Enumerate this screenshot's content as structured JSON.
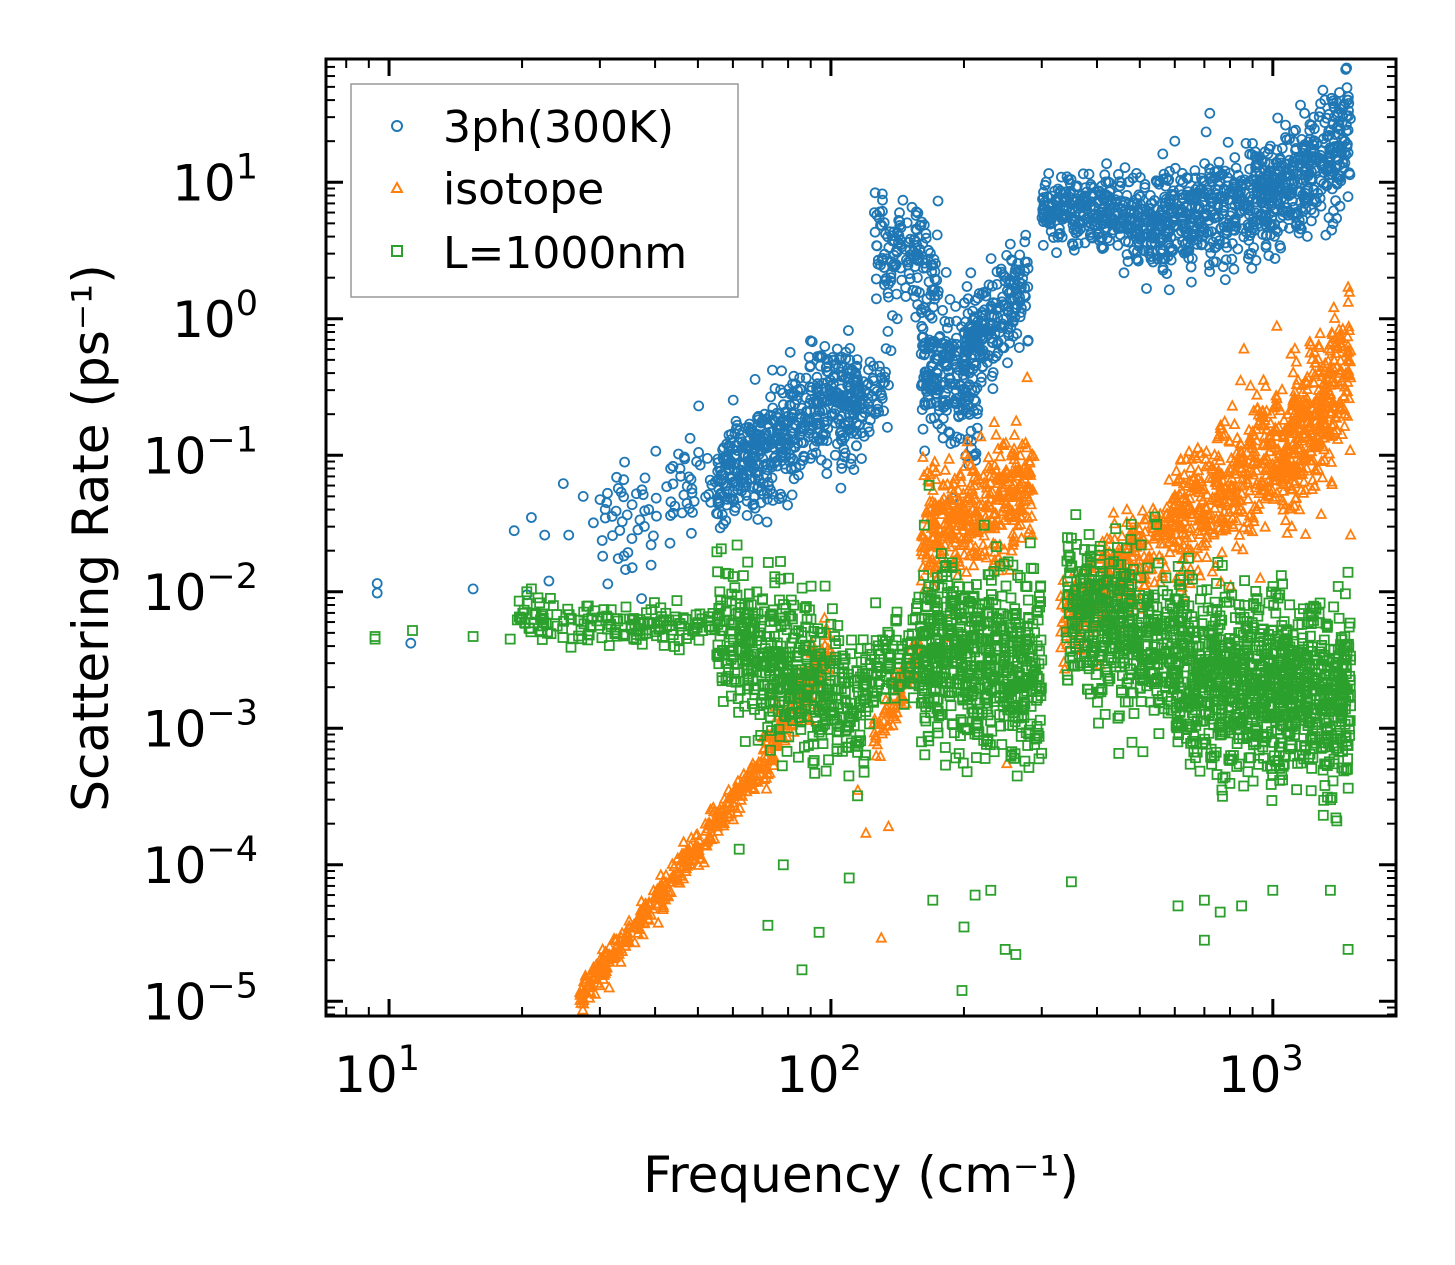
{
  "chart_data": {
    "type": "scatter",
    "title": "",
    "xlabel": "Frequency (cm⁻¹)",
    "ylabel": "Scattering Rate (ps⁻¹)",
    "xscale": "log",
    "yscale": "log",
    "xlim": [
      7.2,
      1900
    ],
    "ylim": [
      7.8e-06,
      80
    ],
    "x_ticks": [
      {
        "value": 10,
        "base": "10",
        "exp": "1"
      },
      {
        "value": 100,
        "base": "10",
        "exp": "2"
      },
      {
        "value": 1000,
        "base": "10",
        "exp": "3"
      }
    ],
    "y_ticks": [
      {
        "value": 1e-05,
        "base": "10",
        "exp": "−5"
      },
      {
        "value": 0.0001,
        "base": "10",
        "exp": "−4"
      },
      {
        "value": 0.001,
        "base": "10",
        "exp": "−3"
      },
      {
        "value": 0.01,
        "base": "10",
        "exp": "−2"
      },
      {
        "value": 0.1,
        "base": "10",
        "exp": "−1"
      },
      {
        "value": 1,
        "base": "10",
        "exp": "0"
      },
      {
        "value": 10,
        "base": "10",
        "exp": "1"
      }
    ],
    "legend_position": "top-left",
    "series": [
      {
        "name": "3ph(300K)",
        "marker": "circle",
        "color": "#1f77b4",
        "segments": [
          {
            "x0": 30,
            "x1": 60,
            "y0": 0.03,
            "y1": 0.09,
            "spread": 0.35,
            "n": 90
          },
          {
            "x0": 55,
            "x1": 115,
            "y0": 0.06,
            "y1": 0.35,
            "spread": 0.35,
            "n": 520
          },
          {
            "x0": 105,
            "x1": 135,
            "y0": 0.15,
            "y1": 0.4,
            "spread": 0.3,
            "n": 90
          },
          {
            "x0": 125,
            "x1": 175,
            "y0": 3.0,
            "y1": 2.5,
            "spread": 0.35,
            "n": 140
          },
          {
            "x0": 160,
            "x1": 215,
            "y0": 0.6,
            "y1": 0.25,
            "spread": 0.45,
            "n": 230
          },
          {
            "x0": 200,
            "x1": 280,
            "y0": 0.6,
            "y1": 1.8,
            "spread": 0.3,
            "n": 220
          },
          {
            "x0": 300,
            "x1": 460,
            "y0": 6.5,
            "y1": 6.0,
            "spread": 0.2,
            "n": 260
          },
          {
            "x0": 460,
            "x1": 700,
            "y0": 5.0,
            "y1": 6.0,
            "spread": 0.3,
            "n": 300
          },
          {
            "x0": 700,
            "x1": 1050,
            "y0": 6.0,
            "y1": 9.0,
            "spread": 0.32,
            "n": 320
          },
          {
            "x0": 1050,
            "x1": 1500,
            "y0": 8.0,
            "y1": 22.0,
            "spread": 0.35,
            "n": 280
          }
        ],
        "points": [
          [
            9.4,
            0.0115
          ],
          [
            9.4,
            0.0098
          ],
          [
            11.2,
            0.0042
          ],
          [
            15.5,
            0.0105
          ],
          [
            19.2,
            0.028
          ],
          [
            20.5,
            0.0095
          ],
          [
            21.0,
            0.035
          ],
          [
            22.5,
            0.026
          ],
          [
            23.0,
            0.012
          ],
          [
            24.8,
            0.062
          ],
          [
            25.5,
            0.026
          ],
          [
            27.5,
            0.05
          ],
          [
            29.0,
            0.032
          ],
          [
            33.0,
            0.0175
          ],
          [
            35.5,
            0.015
          ],
          [
            720,
            32
          ],
          [
            600,
            20
          ],
          [
            1180,
            32
          ],
          [
            1480,
            40
          ]
        ]
      },
      {
        "name": "isotope",
        "marker": "triangle",
        "color": "#ff7f0e",
        "segments": [
          {
            "x0": 27,
            "x1": 72,
            "y0": 1.1e-05,
            "y1": 0.0006,
            "spread": 0.1,
            "n": 380
          },
          {
            "x0": 70,
            "x1": 100,
            "y0": 0.0006,
            "y1": 0.004,
            "spread": 0.2,
            "n": 160
          },
          {
            "x0": 125,
            "x1": 160,
            "y0": 0.0008,
            "y1": 0.004,
            "spread": 0.15,
            "n": 80
          },
          {
            "x0": 160,
            "x1": 290,
            "y0": 0.025,
            "y1": 0.06,
            "spread": 0.35,
            "n": 420
          },
          {
            "x0": 330,
            "x1": 600,
            "y0": 0.006,
            "y1": 0.03,
            "spread": 0.3,
            "n": 300
          },
          {
            "x0": 600,
            "x1": 1050,
            "y0": 0.03,
            "y1": 0.12,
            "spread": 0.4,
            "n": 420
          },
          {
            "x0": 1050,
            "x1": 1500,
            "y0": 0.08,
            "y1": 0.5,
            "spread": 0.45,
            "n": 380
          }
        ],
        "points": [
          [
            27.5,
            1.05e-05
          ],
          [
            30.0,
            1.3e-05
          ],
          [
            31.5,
            1.25e-05
          ],
          [
            130,
            2.9e-05
          ],
          [
            120,
            0.00017
          ],
          [
            115,
            0.00035
          ],
          [
            135,
            0.00019
          ],
          [
            250,
            0.00055
          ],
          [
            278,
            0.37
          ],
          [
            1310,
            0.17
          ],
          [
            1480,
            1.7
          ],
          [
            1500,
            0.026
          ],
          [
            1100,
            0.55
          ],
          [
            860,
            0.6
          ]
        ]
      },
      {
        "name": "L=1000nm",
        "marker": "square",
        "color": "#2ca02c",
        "segments": [
          {
            "x0": 19,
            "x1": 55,
            "y0": 0.006,
            "y1": 0.0055,
            "spread": 0.12,
            "n": 160
          },
          {
            "x0": 55,
            "x1": 120,
            "y0": 0.005,
            "y1": 0.0015,
            "spread": 0.45,
            "n": 520
          },
          {
            "x0": 120,
            "x1": 160,
            "y0": 0.0025,
            "y1": 0.0035,
            "spread": 0.3,
            "n": 100
          },
          {
            "x0": 160,
            "x1": 300,
            "y0": 0.004,
            "y1": 0.0025,
            "spread": 0.55,
            "n": 620
          },
          {
            "x0": 340,
            "x1": 600,
            "y0": 0.008,
            "y1": 0.003,
            "spread": 0.5,
            "n": 460
          },
          {
            "x0": 600,
            "x1": 1050,
            "y0": 0.003,
            "y1": 0.0018,
            "spread": 0.55,
            "n": 620
          },
          {
            "x0": 1050,
            "x1": 1500,
            "y0": 0.002,
            "y1": 0.0015,
            "spread": 0.55,
            "n": 420
          }
        ],
        "points": [
          [
            9.3,
            0.0047
          ],
          [
            9.3,
            0.0045
          ],
          [
            11.3,
            0.0052
          ],
          [
            15.5,
            0.0047
          ],
          [
            18.8,
            0.0045
          ],
          [
            20.5,
            0.01
          ],
          [
            21.0,
            0.0105
          ],
          [
            62,
            0.00013
          ],
          [
            64,
            0.0008
          ],
          [
            72,
            3.6e-05
          ],
          [
            78,
            0.0001
          ],
          [
            86,
            1.7e-05
          ],
          [
            94,
            3.2e-05
          ],
          [
            110,
            8e-05
          ],
          [
            170,
            5.5e-05
          ],
          [
            198,
            1.2e-05
          ],
          [
            200,
            3.5e-05
          ],
          [
            212,
            6e-05
          ],
          [
            230,
            6.5e-05
          ],
          [
            248,
            2.4e-05
          ],
          [
            262,
            2.2e-05
          ],
          [
            350,
            7.5e-05
          ],
          [
            610,
            5e-05
          ],
          [
            700,
            5.5e-05
          ],
          [
            700,
            2.8e-05
          ],
          [
            760,
            4.5e-05
          ],
          [
            850,
            5e-05
          ],
          [
            1000,
            6.5e-05
          ],
          [
            1350,
            6.5e-05
          ],
          [
            1480,
            2.4e-05
          ]
        ]
      }
    ]
  }
}
